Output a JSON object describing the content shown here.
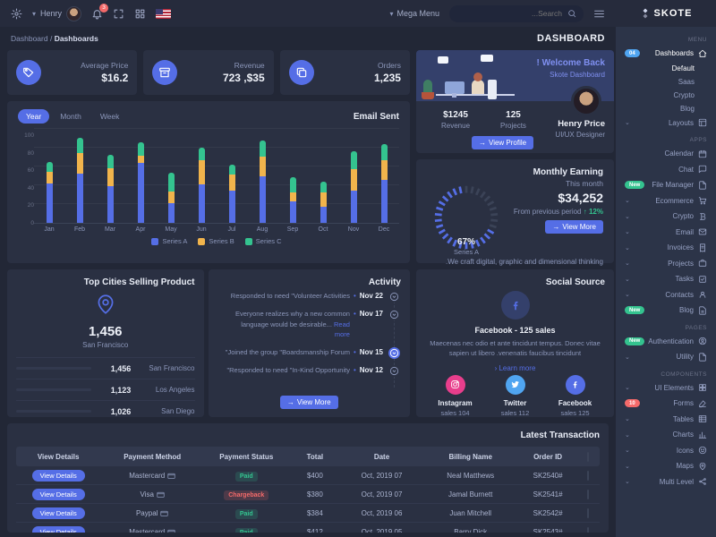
{
  "colors": {
    "primary": "#556ee6",
    "info": "#50a5f1",
    "success": "#34c38f",
    "warning": "#f1b44c",
    "danger": "#f46a6a",
    "pink": "#e83e8c"
  },
  "topbar": {
    "user_name": "Henry",
    "bell_count": "3",
    "mega_menu": "Mega Menu",
    "search_placeholder": "Search...",
    "icons": [
      "gear-icon",
      "bell-icon",
      "fullscreen-icon",
      "apps-grid-icon",
      "us-flag",
      "hamburger-icon",
      "search-icon"
    ]
  },
  "logo": {
    "text": "SKOTE"
  },
  "breadcrumb": {
    "parent": "Dashboard",
    "current": "Dashboards",
    "page_title": "DASHBOARD"
  },
  "stats": {
    "items": [
      {
        "label": "Average Price",
        "value": "$16.2",
        "icon": "tag"
      },
      {
        "label": "Revenue",
        "value": "723 ,$35",
        "icon": "archive"
      },
      {
        "label": "Orders",
        "value": "1,235",
        "icon": "copy"
      }
    ]
  },
  "email_sent": {
    "title": "Email Sent",
    "tabs": [
      {
        "label": "Year",
        "active": true
      },
      {
        "label": "Month",
        "active": false
      },
      {
        "label": "Week",
        "active": false
      }
    ]
  },
  "chart_data": [
    {
      "type": "bar",
      "stacked": true,
      "title": "Email Sent",
      "categories": [
        "Jan",
        "Feb",
        "Mar",
        "Apr",
        "May",
        "Jun",
        "Jul",
        "Aug",
        "Sep",
        "Oct",
        "Nov",
        "Dec"
      ],
      "series": [
        {
          "name": "Series A",
          "color": "#556ee6",
          "values": [
            44,
            55,
            41,
            67,
            22,
            43,
            36,
            52,
            24,
            18,
            36,
            48
          ]
        },
        {
          "name": "Series B",
          "color": "#f1b44c",
          "values": [
            13,
            23,
            20,
            8,
            13,
            27,
            18,
            22,
            10,
            16,
            24,
            22
          ]
        },
        {
          "name": "Series C",
          "color": "#34c38f",
          "values": [
            11,
            17,
            15,
            15,
            21,
            14,
            11,
            18,
            17,
            12,
            20,
            18
          ]
        }
      ],
      "xlabel": "",
      "ylabel": "",
      "ylim": [
        0,
        100
      ],
      "yticks": [
        0,
        20,
        40,
        60,
        80,
        100
      ],
      "grid": true,
      "legend_position": "bottom"
    },
    {
      "type": "radial",
      "title": "Monthly Earning gauge",
      "label": "Series A",
      "value": 67,
      "max": 100,
      "color": "#556ee6"
    }
  ],
  "welcome": {
    "title": "! Welcome Back",
    "subtitle": "Skote Dashboard",
    "stats": [
      {
        "value": "$1245",
        "label": "Revenue"
      },
      {
        "value": "125",
        "label": "Projects"
      }
    ],
    "name": "Henry Price",
    "role": "UI/UX Designer",
    "button": "View Profile"
  },
  "monthly": {
    "title": "Monthly Earning",
    "this_month": "This month",
    "amount": "$34,252",
    "period_text": "From previous period",
    "delta": "12%",
    "button": "View More",
    "footer": ".We craft digital, graphic and dimensional thinking",
    "gauge_pct": "67%",
    "gauge_series": "Series A"
  },
  "cities": {
    "title": "Top Cities Selling Product",
    "big_value": "1,456",
    "big_city": "San Francisco",
    "rows": [
      {
        "value": "1,456",
        "city": "San Francisco",
        "color": "#556ee6",
        "pct": 94
      },
      {
        "value": "1,123",
        "city": "Los Angeles",
        "color": "#34c38f",
        "pct": 82
      },
      {
        "value": "1,026",
        "city": "San Diego",
        "color": "#f1b44c",
        "pct": 69
      }
    ]
  },
  "activity": {
    "title": "Activity",
    "button": "View More",
    "items": [
      {
        "text": "Responded to need \"Volunteer Activities",
        "date": "Nov 22",
        "active": false,
        "link": ""
      },
      {
        "text": "Everyone realizes why a new common language would be desirable...",
        "date": "Nov 17",
        "active": false,
        "link": "Read more"
      },
      {
        "text": "\"Joined the group \"Boardsmanship Forum",
        "date": "Nov 15",
        "active": true,
        "link": ""
      },
      {
        "text": "\"Responded to need \"In-Kind Opportunity",
        "date": "Nov 12",
        "active": false,
        "link": ""
      }
    ]
  },
  "social": {
    "title": "Social Source",
    "headline": "Facebook - 125 sales",
    "desc": "Maecenas nec odio et ante tincidunt tempus. Donec vitae sapien ut libero .venenatis faucibus tincidunt",
    "learn_more": "› Learn more",
    "items": [
      {
        "name": "Instagram",
        "sales": "sales 104",
        "color": "#e83e8c",
        "icon": "instagram"
      },
      {
        "name": "Twitter",
        "sales": "sales 112",
        "color": "#50a5f1",
        "icon": "twitter"
      },
      {
        "name": "Facebook",
        "sales": "sales 125",
        "color": "#556ee6",
        "icon": "facebook"
      }
    ]
  },
  "table": {
    "title": "Latest Transaction",
    "headers": [
      "View Details",
      "Payment Method",
      "Payment Status",
      "Total",
      "Date",
      "Billing Name",
      "Order ID"
    ],
    "rows": [
      {
        "button": "View Details",
        "method": "Mastercard",
        "status": "Paid",
        "total": "$400",
        "date": "Oct, 2019 07",
        "name": "Neal Matthews",
        "order": "SK2540#"
      },
      {
        "button": "View Details",
        "method": "Visa",
        "status": "Chargeback",
        "total": "$380",
        "date": "Oct, 2019 07",
        "name": "Jamal Burnett",
        "order": "SK2541#"
      },
      {
        "button": "View Details",
        "method": "Paypal",
        "status": "Paid",
        "total": "$384",
        "date": "Oct, 2019 06",
        "name": "Juan Mitchell",
        "order": "SK2542#"
      },
      {
        "button": "View Details",
        "method": "Mastercard",
        "status": "Paid",
        "total": "$412",
        "date": "Oct, 2019 05",
        "name": "Barry Dick",
        "order": "SK2543#"
      }
    ]
  },
  "sidebar": {
    "items": [
      {
        "t": "section",
        "label": "MENU"
      },
      {
        "t": "item",
        "label": "Dashboards",
        "icon": "home",
        "badge": {
          "text": "04",
          "color": "#50a5f1"
        },
        "active": true
      },
      {
        "t": "sub",
        "label": "Default",
        "active": true
      },
      {
        "t": "sub",
        "label": "Saas",
        "active": false
      },
      {
        "t": "sub",
        "label": "Crypto",
        "active": false
      },
      {
        "t": "sub",
        "label": "Blog",
        "active": false
      },
      {
        "t": "item",
        "label": "Layouts",
        "icon": "layout",
        "chevron": true
      },
      {
        "t": "section",
        "label": "APPS"
      },
      {
        "t": "item",
        "label": "Calendar",
        "icon": "calendar"
      },
      {
        "t": "item",
        "label": "Chat",
        "icon": "chat"
      },
      {
        "t": "item",
        "label": "File Manager",
        "icon": "file",
        "badge": {
          "text": "New",
          "color": "#34c38f"
        }
      },
      {
        "t": "item",
        "label": "Ecommerce",
        "icon": "cart",
        "chevron": true
      },
      {
        "t": "item",
        "label": "Crypto",
        "icon": "bitcoin",
        "chevron": true
      },
      {
        "t": "item",
        "label": "Email",
        "icon": "envelope",
        "chevron": true
      },
      {
        "t": "item",
        "label": "Invoices",
        "icon": "invoice",
        "chevron": true
      },
      {
        "t": "item",
        "label": "Projects",
        "icon": "briefcase",
        "chevron": true
      },
      {
        "t": "item",
        "label": "Tasks",
        "icon": "task",
        "chevron": true
      },
      {
        "t": "item",
        "label": "Contacts",
        "icon": "contacts",
        "chevron": true
      },
      {
        "t": "item",
        "label": "Blog",
        "icon": "blogfile",
        "badge": {
          "text": "New",
          "color": "#34c38f"
        }
      },
      {
        "t": "section",
        "label": "PAGES"
      },
      {
        "t": "item",
        "label": "Authentication",
        "icon": "auth",
        "badge": {
          "text": "New",
          "color": "#34c38f"
        }
      },
      {
        "t": "item",
        "label": "Utility",
        "icon": "utility",
        "chevron": true
      },
      {
        "t": "section",
        "label": "COMPONENTS"
      },
      {
        "t": "item",
        "label": "UI Elements",
        "icon": "ui",
        "chevron": true
      },
      {
        "t": "item",
        "label": "Forms",
        "icon": "forms",
        "badge": {
          "text": "10",
          "color": "#f46a6a"
        }
      },
      {
        "t": "item",
        "label": "Tables",
        "icon": "tables",
        "chevron": true
      },
      {
        "t": "item",
        "label": "Charts",
        "icon": "charts",
        "chevron": true
      },
      {
        "t": "item",
        "label": "Icons",
        "icon": "icons",
        "chevron": true
      },
      {
        "t": "item",
        "label": "Maps",
        "icon": "maps",
        "chevron": true
      },
      {
        "t": "item",
        "label": "Multi Level",
        "icon": "share",
        "chevron": true
      }
    ]
  }
}
